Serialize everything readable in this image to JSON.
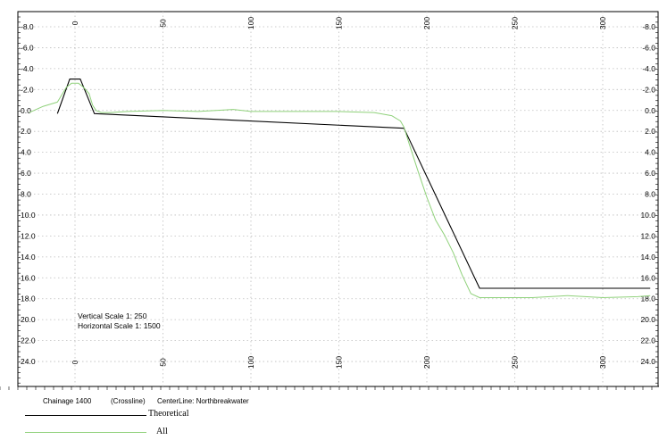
{
  "chart_data": {
    "type": "line",
    "title": "",
    "xlabel": "",
    "ylabel": "",
    "xlim": [
      -26,
      327
    ],
    "ylim": [
      -9,
      25
    ],
    "y_inverted": true,
    "grid": true,
    "x_ticks": [
      0,
      50,
      100,
      150,
      200,
      250,
      300
    ],
    "x_tick_labels": [
      "0",
      "50",
      "100",
      "150",
      "200",
      "250",
      "300"
    ],
    "y_ticks": [
      -8,
      -6,
      -4,
      -2,
      0,
      2,
      4,
      6,
      8,
      10,
      12,
      14,
      16,
      18,
      20,
      22,
      24
    ],
    "y_tick_labels": [
      "-8.0",
      "-6.0",
      "-4.0",
      "-2.0",
      "0.0",
      "2.0",
      "4.0",
      "6.0",
      "8.0",
      "10.0",
      "12.0",
      "14.0",
      "16.0",
      "18.0",
      "20.0",
      "22.0",
      "24.0"
    ],
    "annotations": [
      "Vertical Scale 1: 250",
      "Horizontal Scale 1: 1500"
    ],
    "series": [
      {
        "name": "Theoretical",
        "color": "#000000",
        "x": [
          -10,
          -3,
          3,
          11,
          187,
          230,
          327
        ],
        "y": [
          0.3,
          -3.0,
          -3.0,
          0.3,
          1.7,
          17.0,
          17.0
        ]
      },
      {
        "name": "All",
        "color": "#8fd17a",
        "x": [
          -26,
          -18,
          -10,
          -5,
          -2,
          2,
          5,
          8,
          10,
          12,
          15,
          20,
          30,
          50,
          70,
          90,
          100,
          120,
          150,
          170,
          180,
          185,
          187,
          190,
          195,
          200,
          205,
          210,
          215,
          220,
          225,
          230,
          240,
          260,
          280,
          300,
          320,
          327
        ],
        "y": [
          0.2,
          -0.4,
          -0.8,
          -2.2,
          -2.6,
          -2.6,
          -2.2,
          -1.6,
          -0.5,
          0.0,
          0.2,
          0.2,
          0.1,
          0.0,
          0.1,
          -0.1,
          0.1,
          0.1,
          0.1,
          0.2,
          0.5,
          1.0,
          1.6,
          3.2,
          5.8,
          8.3,
          10.5,
          11.9,
          13.6,
          15.7,
          17.5,
          17.9,
          17.9,
          17.9,
          17.7,
          17.9,
          17.8,
          17.7
        ]
      }
    ]
  },
  "footer": {
    "chainage": "Chainage 1400",
    "crossline": "(Crossline)",
    "centerline": "CenterLine: Northbreakwater"
  },
  "legend": {
    "theoretical": "Theoretical",
    "all": "All"
  }
}
